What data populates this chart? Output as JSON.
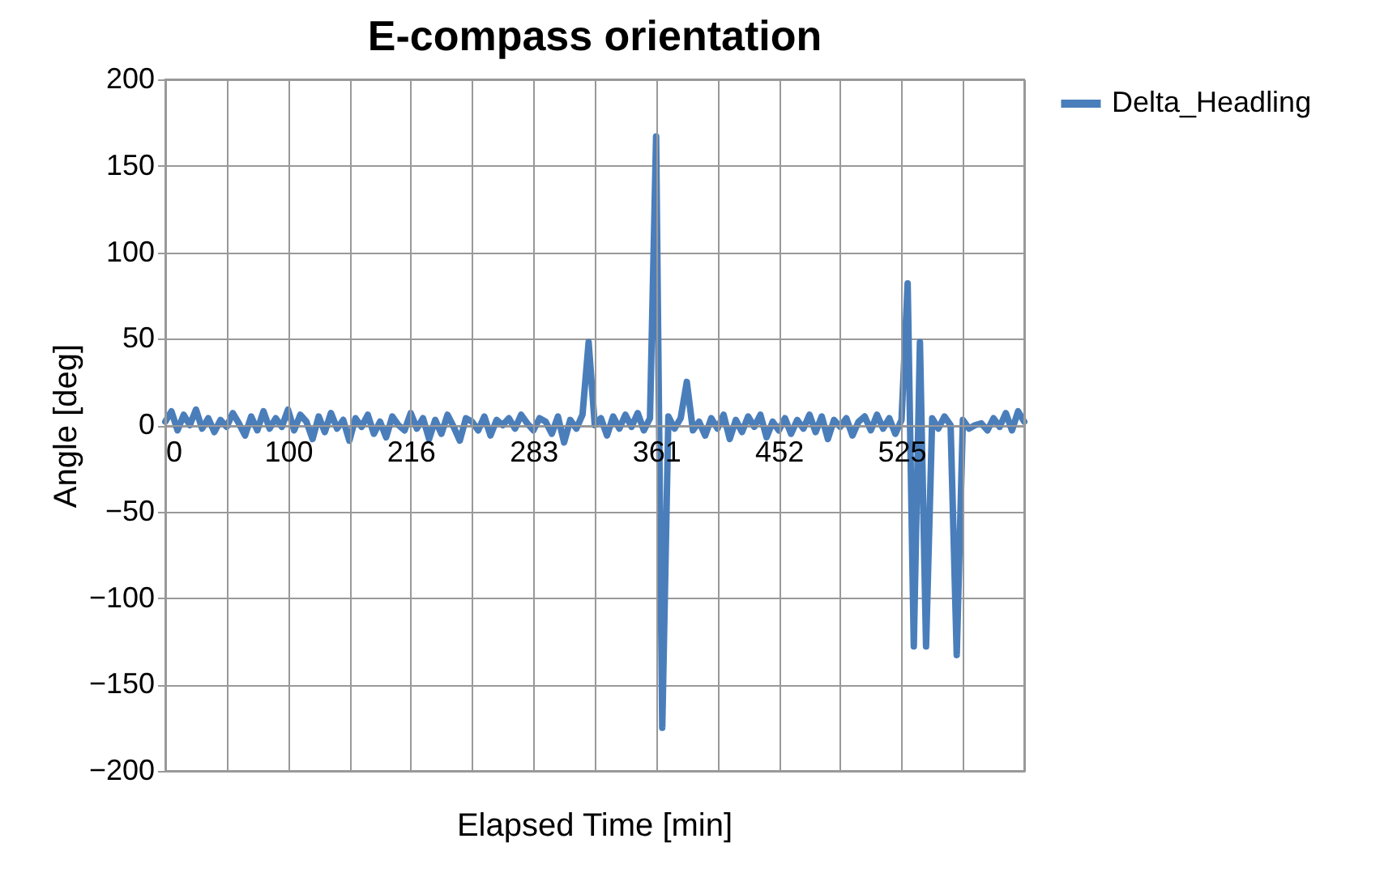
{
  "chart_data": {
    "type": "line",
    "title": "E-compass orientation",
    "xlabel": "Elapsed Time [min]",
    "ylabel": "Angle [deg]",
    "categories": [
      "0",
      null,
      null,
      null,
      null,
      null,
      null,
      null,
      null,
      null,
      null,
      null,
      null,
      null,
      null,
      null,
      null,
      null,
      null,
      null,
      "100",
      null,
      null,
      null,
      null,
      null,
      null,
      null,
      null,
      null,
      null,
      null,
      null,
      null,
      null,
      null,
      null,
      null,
      null,
      null,
      "216",
      null,
      null,
      null,
      null,
      null,
      null,
      null,
      null,
      null,
      null,
      null,
      null,
      null,
      null,
      null,
      null,
      null,
      null,
      null,
      "283",
      null,
      null,
      null,
      null,
      null,
      null,
      null,
      null,
      null,
      null,
      null,
      null,
      null,
      null,
      null,
      null,
      null,
      null,
      null,
      "361",
      null,
      null,
      null,
      null,
      null,
      null,
      null,
      null,
      null,
      null,
      null,
      null,
      null,
      null,
      null,
      null,
      null,
      null,
      null,
      "452",
      null,
      null,
      null,
      null,
      null,
      null,
      null,
      null,
      null,
      null,
      null,
      null,
      null,
      null,
      null,
      null,
      null,
      null,
      null,
      "525",
      null,
      null,
      null,
      null,
      null,
      null,
      null,
      null,
      null,
      null,
      null,
      null,
      null,
      null,
      null,
      null,
      null,
      null,
      null,
      null
    ],
    "series": [
      {
        "name": "Delta_Headling",
        "color": "#4a7ebb",
        "values": [
          2,
          8,
          -3,
          6,
          0,
          9,
          -2,
          4,
          -4,
          3,
          -1,
          7,
          1,
          -6,
          5,
          -3,
          8,
          -2,
          4,
          -1,
          9,
          -3,
          6,
          2,
          -8,
          5,
          -4,
          7,
          -2,
          3,
          -9,
          4,
          -1,
          6,
          -5,
          2,
          -7,
          5,
          0,
          -3,
          7,
          -2,
          4,
          -8,
          3,
          -5,
          6,
          -1,
          -9,
          4,
          2,
          -3,
          5,
          -6,
          3,
          0,
          4,
          -2,
          6,
          1,
          -3,
          4,
          2,
          -5,
          5,
          -10,
          3,
          -2,
          6,
          48,
          0,
          4,
          -6,
          5,
          -2,
          6,
          -1,
          7,
          -3,
          4,
          167,
          -175,
          5,
          -2,
          4,
          25,
          -3,
          2,
          -6,
          4,
          -2,
          6,
          -8,
          3,
          -4,
          5,
          -1,
          6,
          -7,
          2,
          -3,
          4,
          -5,
          3,
          -2,
          6,
          -4,
          5,
          -8,
          3,
          -1,
          4,
          -6,
          2,
          5,
          -3,
          6,
          -2,
          4,
          -5,
          3,
          82,
          -128,
          48,
          -128,
          4,
          -2,
          5,
          0,
          -133,
          3,
          -2,
          0,
          1,
          -3,
          4,
          -1,
          7,
          -3,
          8,
          2
        ]
      }
    ],
    "ylim": [
      -200,
      200
    ],
    "yticks": [
      -200,
      -150,
      -100,
      -50,
      0,
      50,
      100,
      150,
      200
    ],
    "grid": true,
    "legend": "top right"
  }
}
